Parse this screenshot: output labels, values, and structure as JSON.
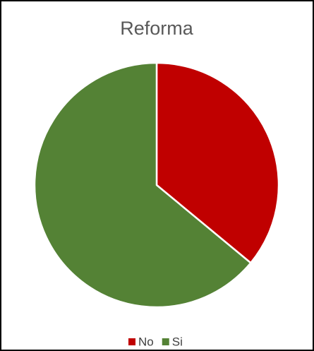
{
  "chart_data": {
    "type": "pie",
    "title": "Reforma",
    "categories": [
      "No",
      "Si"
    ],
    "values": [
      36,
      64
    ],
    "colors": [
      "#c00000",
      "#548235"
    ]
  }
}
